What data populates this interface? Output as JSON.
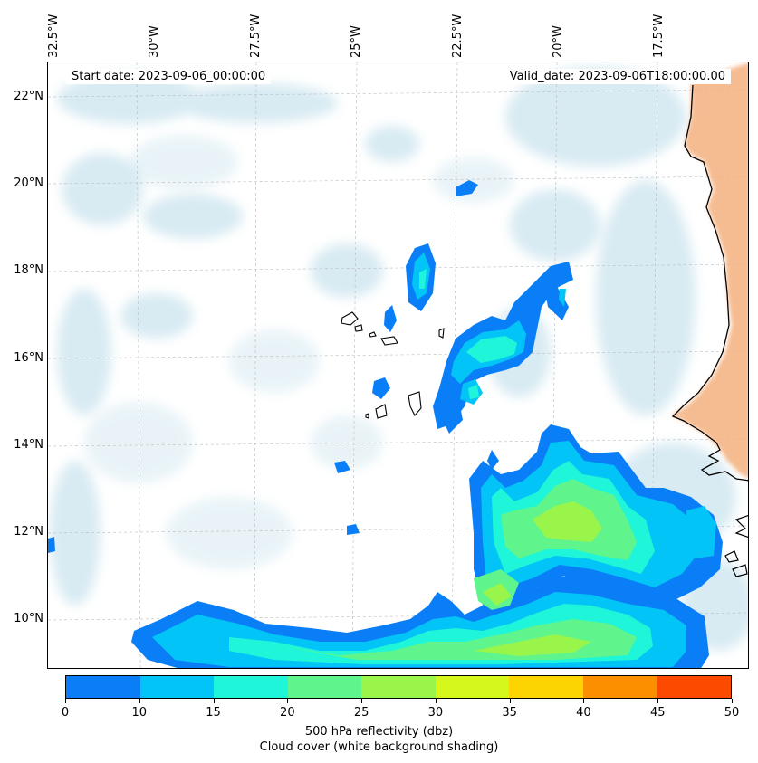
{
  "header": {
    "start_date": "Start date: 2023-09-06_00:00:00",
    "valid_date": "Valid_date: 2023-09-06T18:00:00.00"
  },
  "axes": {
    "lon_labels": [
      "32.5°W",
      "30°W",
      "27.5°W",
      "25°W",
      "22.5°W",
      "20°W",
      "17.5°W"
    ],
    "lat_labels": [
      "22°N",
      "20°N",
      "18°N",
      "16°N",
      "14°N",
      "12°N",
      "10°N"
    ]
  },
  "colorbar": {
    "ticks": [
      "0",
      "10",
      "15",
      "20",
      "25",
      "30",
      "35",
      "40",
      "45",
      "50"
    ],
    "colors": [
      "#0a7ef7",
      "#03c4f7",
      "#1ff5d8",
      "#5ff58c",
      "#9af54a",
      "#d6f71c",
      "#fcd400",
      "#fc8f00",
      "#fc4a00"
    ],
    "label_line1": "500 hPa reflectivity (dbz)",
    "label_line2": "Cloud cover (white background shading)"
  },
  "map": {
    "land_color": "#f4b07e",
    "cloud_color": "#a9d3e3",
    "coast_color": "#000000"
  }
}
